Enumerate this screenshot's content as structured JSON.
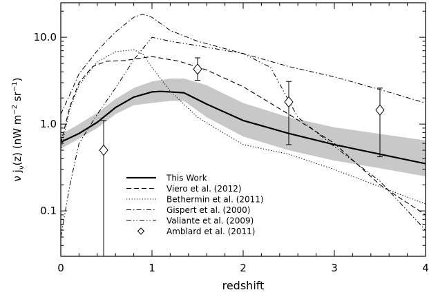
{
  "chart_data": {
    "type": "line",
    "xlabel": "redshift",
    "ylabel_parts": [
      "ν j",
      "ν",
      "(z)  (nW m",
      "−2",
      " sr",
      "−1",
      ")"
    ],
    "xlim": [
      0,
      4
    ],
    "ylim": [
      0.03,
      25
    ],
    "yscale": "log",
    "x_ticks": [
      {
        "value": 0,
        "label": "0"
      },
      {
        "value": 1,
        "label": "1"
      },
      {
        "value": 2,
        "label": "2"
      },
      {
        "value": 3,
        "label": "3"
      },
      {
        "value": 4,
        "label": "4"
      }
    ],
    "y_ticks": [
      {
        "value": 0.1,
        "label": "0.1"
      },
      {
        "value": 1.0,
        "label": "1.0"
      },
      {
        "value": 10.0,
        "label": "10.0"
      }
    ],
    "band": {
      "x": [
        0.0,
        0.2,
        0.4,
        0.6,
        0.8,
        1.0,
        1.2,
        1.35,
        1.6,
        2.0,
        2.5,
        3.0,
        3.5,
        4.0
      ],
      "lower": [
        0.52,
        0.68,
        0.9,
        1.3,
        1.65,
        1.75,
        1.85,
        1.85,
        1.2,
        0.72,
        0.5,
        0.38,
        0.31,
        0.25
      ],
      "upper": [
        0.76,
        1.0,
        1.35,
        1.95,
        2.6,
        3.1,
        3.35,
        3.35,
        2.8,
        1.75,
        1.2,
        0.92,
        0.77,
        0.65
      ]
    },
    "series": [
      {
        "name": "This Work",
        "dash": "solid",
        "x": [
          0.0,
          0.2,
          0.4,
          0.6,
          0.8,
          1.0,
          1.1,
          1.35,
          1.6,
          2.0,
          2.5,
          3.0,
          3.5,
          4.0
        ],
        "y": [
          0.62,
          0.78,
          1.05,
          1.55,
          2.05,
          2.35,
          2.38,
          2.3,
          1.7,
          1.1,
          0.78,
          0.58,
          0.45,
          0.35
        ]
      },
      {
        "name": "Viero et al. (2012)",
        "dash": "dashed",
        "x": [
          0.0,
          0.1,
          0.2,
          0.35,
          0.5,
          0.7,
          0.9,
          1.0,
          1.3,
          1.6,
          2.0,
          2.5,
          3.0,
          3.5,
          4.0
        ],
        "y": [
          0.6,
          1.6,
          3.0,
          4.6,
          5.3,
          5.4,
          5.8,
          6.0,
          5.3,
          4.2,
          2.7,
          1.3,
          0.6,
          0.2,
          0.09
        ]
      },
      {
        "name": "Bethermin et al. (2011)",
        "dash": "dotted",
        "x": [
          0.0,
          0.1,
          0.2,
          0.4,
          0.6,
          0.8,
          0.9,
          1.0,
          1.2,
          1.5,
          2.0,
          2.5,
          3.0,
          3.5,
          4.0
        ],
        "y": [
          0.5,
          1.5,
          2.8,
          5.2,
          6.8,
          7.2,
          6.4,
          4.5,
          2.4,
          1.2,
          0.58,
          0.45,
          0.3,
          0.19,
          0.12
        ]
      },
      {
        "name": "Gispert et al. (2000)",
        "dash": "dashdot",
        "x": [
          0.0,
          0.1,
          0.2,
          0.4,
          0.6,
          0.8,
          0.9,
          1.0,
          1.2,
          1.5,
          2.0,
          2.5,
          3.0,
          3.5,
          4.0
        ],
        "y": [
          1.3,
          2.2,
          3.8,
          7.0,
          11.5,
          17.0,
          18.5,
          17.0,
          12.0,
          9.0,
          6.5,
          4.6,
          3.5,
          2.5,
          1.75
        ]
      },
      {
        "name": "Valiante et al. (2009)",
        "dash": "dashdotdot",
        "x": [
          0.0,
          0.1,
          0.2,
          0.4,
          0.6,
          0.8,
          1.0,
          1.2,
          1.5,
          2.0,
          2.3,
          2.6,
          3.0,
          3.5,
          4.0
        ],
        "y": [
          0.05,
          0.2,
          0.6,
          1.3,
          2.6,
          5.5,
          10.0,
          9.0,
          8.0,
          6.5,
          4.5,
          1.2,
          0.55,
          0.22,
          0.06
        ]
      }
    ],
    "points": {
      "name": "Amblard et al. (2011)",
      "marker": "diamond",
      "data": [
        {
          "x": 0.47,
          "y": 0.5,
          "ylo": 0.02,
          "yhi": 1.1
        },
        {
          "x": 1.5,
          "y": 4.3,
          "ylo": 3.2,
          "yhi": 5.8
        },
        {
          "x": 2.5,
          "y": 1.8,
          "ylo": 0.58,
          "yhi": 3.1
        },
        {
          "x": 3.5,
          "y": 1.45,
          "ylo": 0.42,
          "yhi": 2.6
        }
      ]
    },
    "legend_position": "bottom-center",
    "band_color": "#c8c8c8"
  }
}
